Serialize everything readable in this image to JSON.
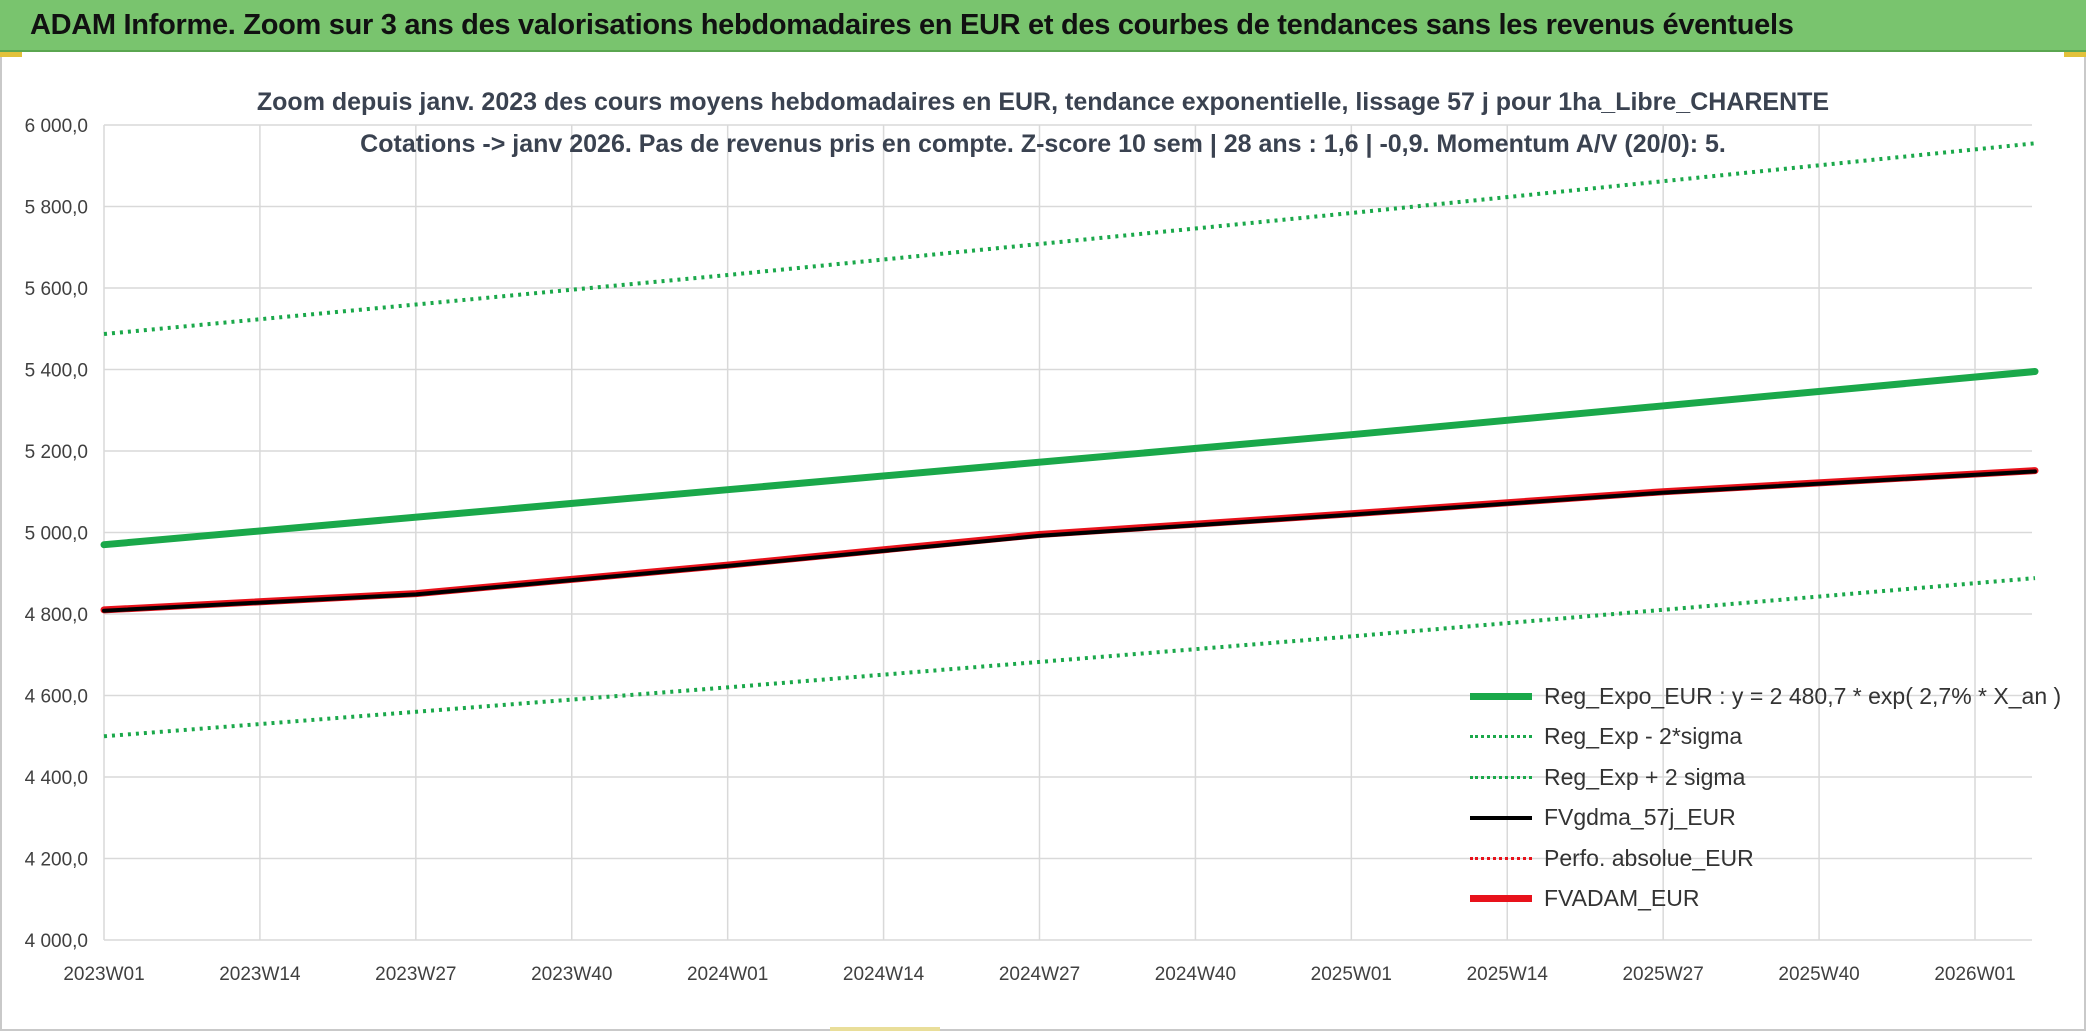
{
  "banner": {
    "title": "ADAM Informe. Zoom sur 3 ans des valorisations hebdomadaires en EUR et des courbes de tendances sans les revenus éventuels"
  },
  "chart_data": {
    "type": "line",
    "title": "Zoom depuis janv. 2023 des cours moyens hebdomadaires en EUR, tendance exponentielle, lissage 57 j pour 1ha_Libre_CHARENTE",
    "subtitle": "Cotations -> janv 2026. Pas de revenus pris en compte. Z-score 10 sem | 28 ans : 1,6 | -0,9. Momentum A/V (20/0): 5.",
    "xlabel": "",
    "ylabel": "",
    "ylim": [
      4000,
      6000
    ],
    "y_ticks": [
      "4 000,0",
      "4 200,0",
      "4 400,0",
      "4 600,0",
      "4 800,0",
      "5 000,0",
      "5 200,0",
      "5 400,0",
      "5 600,0",
      "5 800,0",
      "6 000,0"
    ],
    "x_ticks": [
      "2023W01",
      "2023W14",
      "2023W27",
      "2023W40",
      "2024W01",
      "2024W14",
      "2024W27",
      "2024W40",
      "2025W01",
      "2025W14",
      "2025W27",
      "2025W40",
      "2026W01"
    ],
    "x_ticks_index": [
      0,
      13,
      26,
      39,
      52,
      65,
      78,
      91,
      104,
      117,
      130,
      143,
      156
    ],
    "x_range": [
      0,
      161
    ],
    "grid": true,
    "legend_position": "bottom-right",
    "series": [
      {
        "name": "Reg_Expo_EUR : y = 2 480,7 * exp( 2,7% *  X_an )",
        "color": "#1aa84a",
        "style": "solid",
        "width": 7,
        "x": [
          0,
          52,
          104,
          161
        ],
        "y": [
          4970,
          5105,
          5240,
          5395
        ]
      },
      {
        "name": "Reg_Exp - 2*sigma",
        "color": "#1aa84a",
        "style": "dotted",
        "width": 4,
        "x": [
          0,
          52,
          104,
          161
        ],
        "y": [
          4500,
          4620,
          4745,
          4888
        ]
      },
      {
        "name": "Reg_Exp + 2 sigma",
        "color": "#1aa84a",
        "style": "dotted",
        "width": 4,
        "x": [
          0,
          52,
          104,
          161
        ],
        "y": [
          5487,
          5632,
          5784,
          5955
        ]
      },
      {
        "name": "FVgdma_57j_EUR",
        "color": "#000000",
        "style": "solid",
        "width": 4,
        "x": [
          0,
          26,
          52,
          78,
          104,
          130,
          161
        ],
        "y": [
          4808,
          4848,
          4918,
          4992,
          5044,
          5098,
          5150
        ]
      },
      {
        "name": "Perfo. absolue_EUR",
        "color": "#e8121b",
        "style": "dotted",
        "width": 3,
        "x": [
          0,
          26,
          52,
          78,
          104,
          130,
          161
        ],
        "y": [
          4810,
          4850,
          4920,
          4995,
          5046,
          5100,
          5152
        ]
      },
      {
        "name": "FVADAM_EUR",
        "color": "#e8121b",
        "style": "solid",
        "width": 7,
        "x": [
          0,
          26,
          52,
          78,
          104,
          130,
          161
        ],
        "y": [
          4810,
          4850,
          4920,
          4995,
          5046,
          5100,
          5152
        ]
      }
    ]
  }
}
